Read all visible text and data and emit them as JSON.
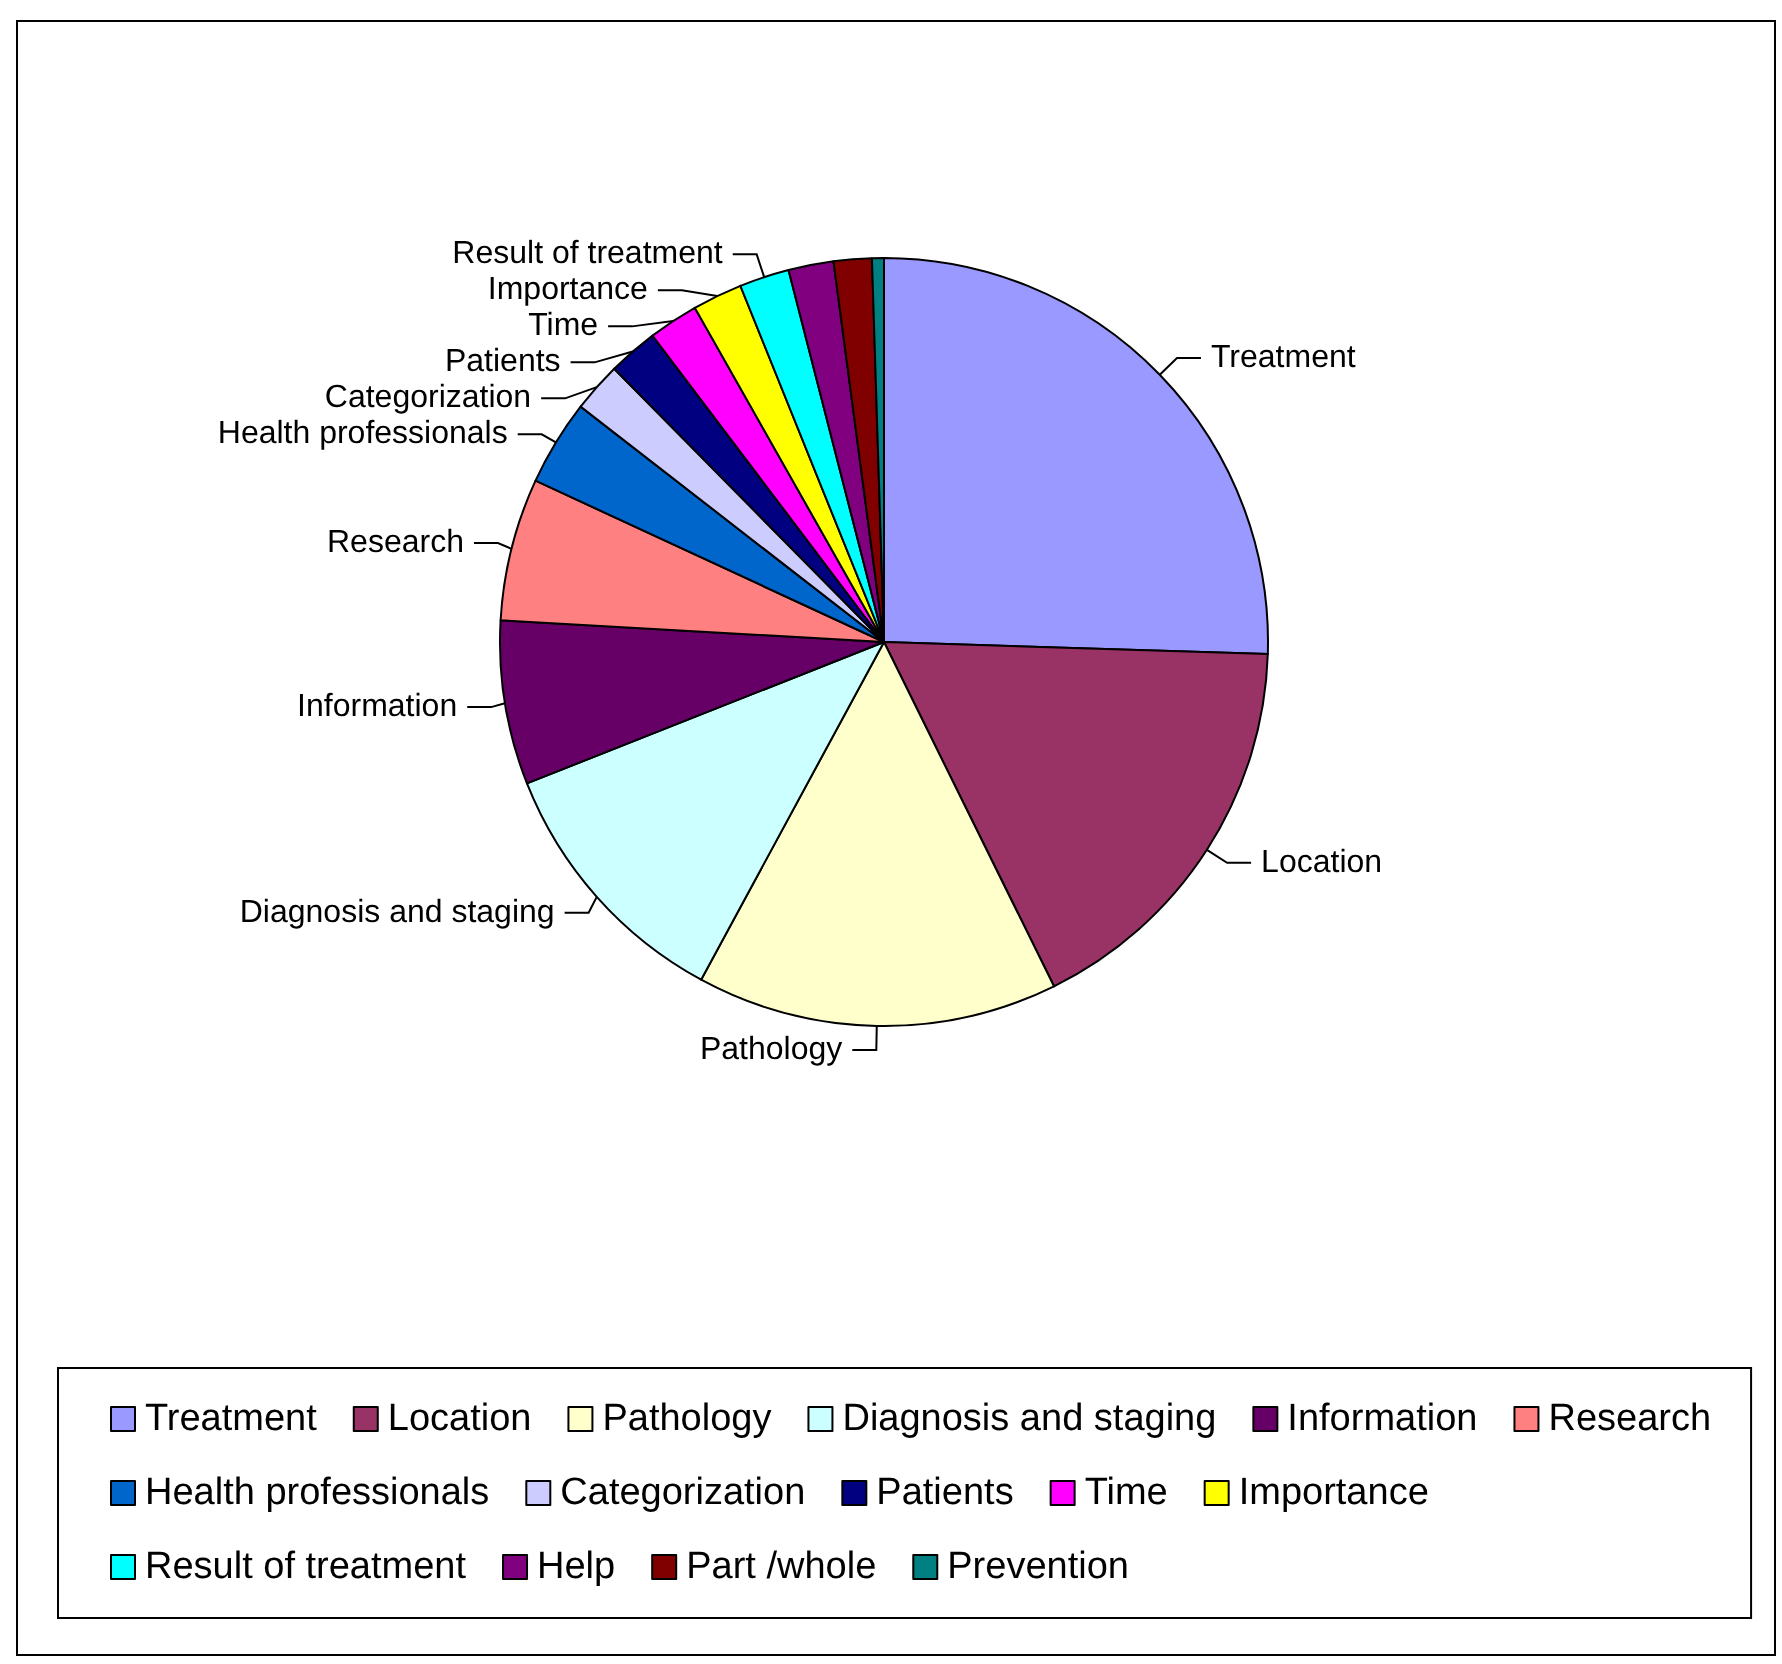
{
  "chart_data": {
    "type": "pie",
    "categories": [
      "Treatment",
      "Location",
      "Pathology",
      "Diagnosis and staging",
      "Information",
      "Research",
      "Health professionals",
      "Categorization",
      "Patients",
      "Time",
      "Importance",
      "Result of treatment",
      "Help",
      "Part /whole",
      "Prevention"
    ],
    "values": [
      25.5,
      17.2,
      15.2,
      11.1,
      6.9,
      6.0,
      3.6,
      2.1,
      2.1,
      2.1,
      2.1,
      2.1,
      1.9,
      1.6,
      0.5
    ],
    "colors": [
      "#9999ff",
      "#993366",
      "#ffffcc",
      "#ccffff",
      "#660066",
      "#ff8080",
      "#0066cc",
      "#ccccff",
      "#000080",
      "#ff00ff",
      "#ffff00",
      "#00ffff",
      "#800080",
      "#800000",
      "#008080"
    ],
    "legend": "bottom"
  }
}
